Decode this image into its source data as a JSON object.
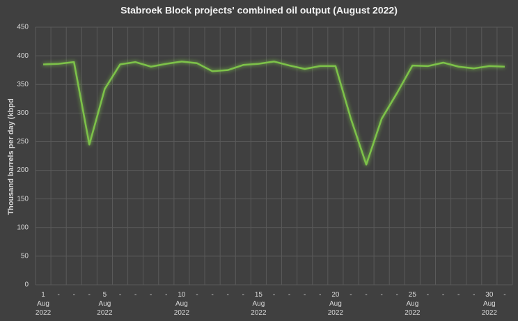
{
  "chart_data": {
    "type": "line",
    "title": "Stabroek Block projects' combined oil output (August 2022)",
    "y_label": "Thousand barrels per day (kbpd",
    "categories": [
      [
        "1",
        "Aug",
        "2022"
      ],
      [
        "-"
      ],
      [
        "-"
      ],
      [
        "-"
      ],
      [
        "5",
        "Aug",
        "2022"
      ],
      [
        "-"
      ],
      [
        "-"
      ],
      [
        "-"
      ],
      [
        "-"
      ],
      [
        "10",
        "Aug",
        "2022"
      ],
      [
        "-"
      ],
      [
        "-"
      ],
      [
        "-"
      ],
      [
        "-"
      ],
      [
        "15",
        "Aug",
        "2022"
      ],
      [
        "-"
      ],
      [
        "-"
      ],
      [
        "-"
      ],
      [
        "-"
      ],
      [
        "20",
        "Aug",
        "2022"
      ],
      [
        "-"
      ],
      [
        "-"
      ],
      [
        "-"
      ],
      [
        "-"
      ],
      [
        "25",
        "Aug",
        "2022"
      ],
      [
        "-"
      ],
      [
        "-"
      ],
      [
        "-"
      ],
      [
        "-"
      ],
      [
        "30",
        "Aug",
        "2022"
      ],
      [
        "-"
      ]
    ],
    "values": [
      385,
      386,
      389,
      245,
      342,
      385,
      389,
      381,
      386,
      390,
      387,
      373,
      375,
      384,
      386,
      390,
      383,
      377,
      382,
      382,
      290,
      210,
      290,
      335,
      383,
      382,
      388,
      381,
      378,
      382,
      381
    ],
    "color": "#7dc24a",
    "ylim": [
      0,
      450
    ],
    "yticks": [
      0,
      50,
      100,
      150,
      200,
      250,
      300,
      350,
      400,
      450
    ],
    "grid": true
  }
}
